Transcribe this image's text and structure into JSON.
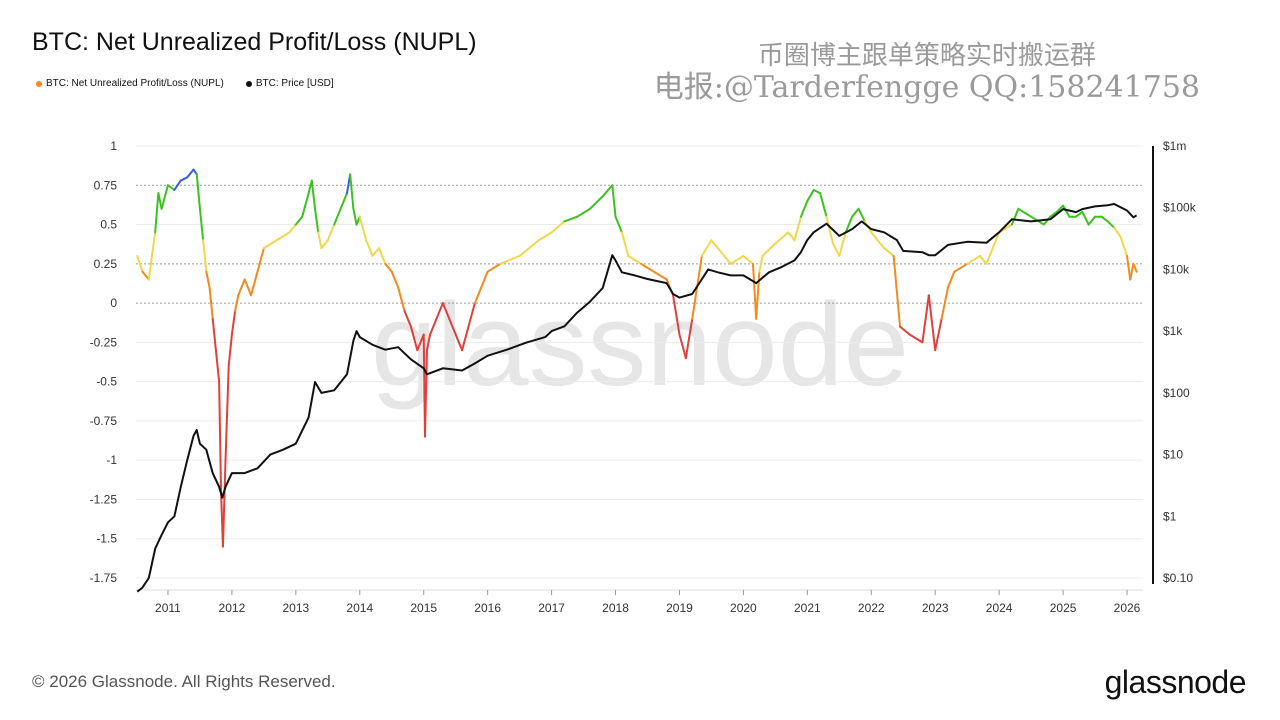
{
  "chart_data": {
    "type": "line",
    "title": "BTC: Net Unrealized Profit/Loss (NUPL)",
    "legend": [
      {
        "name": "BTC: Net Unrealized Profit/Loss (NUPL)",
        "color": "#f28a1c"
      },
      {
        "name": "BTC: Price [USD]",
        "color": "#111111"
      }
    ],
    "x_ticks": [
      "2011",
      "2012",
      "2013",
      "2014",
      "2015",
      "2016",
      "2017",
      "2018",
      "2019",
      "2020",
      "2021",
      "2022",
      "2023",
      "2024",
      "2025",
      "2026"
    ],
    "xlim": [
      2010.5,
      2026.25
    ],
    "left_axis": {
      "ticks": [
        "1",
        "0.75",
        "0.5",
        "0.25",
        "0",
        "-0.25",
        "-0.5",
        "-0.75",
        "-1",
        "-1.25",
        "-1.5",
        "-1.75"
      ],
      "ylim": [
        -1.75,
        1
      ]
    },
    "right_axis": {
      "ticks": [
        "$1m",
        "$100k",
        "$10k",
        "$1k",
        "$100",
        "$10",
        "$1",
        "$0.10"
      ],
      "scale": "log",
      "ylim_log10": [
        -1,
        6
      ]
    },
    "nupl_series": {
      "name": "BTC: Net Unrealized Profit/Loss (NUPL)",
      "x": [
        2010.52,
        2010.6,
        2010.7,
        2010.8,
        2010.85,
        2010.9,
        2011.0,
        2011.1,
        2011.2,
        2011.3,
        2011.4,
        2011.45,
        2011.5,
        2011.55,
        2011.6,
        2011.65,
        2011.7,
        2011.75,
        2011.8,
        2011.83,
        2011.86,
        2011.9,
        2011.95,
        2012.0,
        2012.05,
        2012.1,
        2012.2,
        2012.3,
        2012.5,
        2012.7,
        2012.9,
        2013.0,
        2013.1,
        2013.2,
        2013.25,
        2013.3,
        2013.35,
        2013.4,
        2013.5,
        2013.6,
        2013.7,
        2013.8,
        2013.85,
        2013.9,
        2013.95,
        2014.0,
        2014.1,
        2014.2,
        2014.3,
        2014.4,
        2014.5,
        2014.6,
        2014.7,
        2014.8,
        2014.9,
        2015.0,
        2015.02,
        2015.05,
        2015.1,
        2015.2,
        2015.3,
        2015.5,
        2015.6,
        2015.7,
        2015.8,
        2015.9,
        2016.0,
        2016.2,
        2016.5,
        2016.8,
        2017.0,
        2017.2,
        2017.4,
        2017.6,
        2017.8,
        2017.95,
        2018.0,
        2018.1,
        2018.2,
        2018.4,
        2018.6,
        2018.8,
        2018.9,
        2019.0,
        2019.1,
        2019.2,
        2019.35,
        2019.5,
        2019.6,
        2019.8,
        2020.0,
        2020.15,
        2020.2,
        2020.25,
        2020.3,
        2020.5,
        2020.7,
        2020.8,
        2020.9,
        2021.0,
        2021.1,
        2021.2,
        2021.3,
        2021.4,
        2021.5,
        2021.6,
        2021.7,
        2021.8,
        2021.9,
        2022.0,
        2022.2,
        2022.35,
        2022.45,
        2022.6,
        2022.8,
        2022.9,
        2023.0,
        2023.1,
        2023.2,
        2023.3,
        2023.5,
        2023.7,
        2023.8,
        2023.9,
        2024.0,
        2024.2,
        2024.3,
        2024.5,
        2024.7,
        2024.8,
        2024.9,
        2025.0,
        2025.1,
        2025.2,
        2025.3,
        2025.4,
        2025.5,
        2025.6,
        2025.7,
        2025.8,
        2025.9,
        2026.0,
        2026.05,
        2026.1,
        2026.15
      ],
      "y": [
        0.3,
        0.2,
        0.15,
        0.45,
        0.7,
        0.6,
        0.75,
        0.72,
        0.78,
        0.8,
        0.85,
        0.82,
        0.6,
        0.4,
        0.2,
        0.1,
        -0.1,
        -0.3,
        -0.5,
        -1.2,
        -1.55,
        -1.0,
        -0.4,
        -0.2,
        -0.05,
        0.05,
        0.15,
        0.05,
        0.35,
        0.4,
        0.45,
        0.5,
        0.55,
        0.7,
        0.78,
        0.6,
        0.45,
        0.35,
        0.4,
        0.5,
        0.6,
        0.7,
        0.82,
        0.6,
        0.5,
        0.55,
        0.4,
        0.3,
        0.35,
        0.25,
        0.2,
        0.1,
        -0.05,
        -0.15,
        -0.3,
        -0.2,
        -0.85,
        -0.3,
        -0.2,
        -0.1,
        0.0,
        -0.2,
        -0.3,
        -0.15,
        0.0,
        0.1,
        0.2,
        0.25,
        0.3,
        0.4,
        0.45,
        0.52,
        0.55,
        0.6,
        0.68,
        0.75,
        0.55,
        0.45,
        0.3,
        0.25,
        0.2,
        0.15,
        0.05,
        -0.2,
        -0.35,
        -0.1,
        0.3,
        0.4,
        0.35,
        0.25,
        0.3,
        0.25,
        -0.1,
        0.2,
        0.3,
        0.38,
        0.45,
        0.4,
        0.55,
        0.65,
        0.72,
        0.7,
        0.55,
        0.38,
        0.3,
        0.45,
        0.55,
        0.6,
        0.52,
        0.45,
        0.35,
        0.3,
        -0.15,
        -0.2,
        -0.25,
        0.05,
        -0.3,
        -0.1,
        0.1,
        0.2,
        0.25,
        0.3,
        0.25,
        0.35,
        0.45,
        0.5,
        0.6,
        0.55,
        0.5,
        0.55,
        0.58,
        0.62,
        0.55,
        0.55,
        0.58,
        0.5,
        0.55,
        0.55,
        0.52,
        0.48,
        0.42,
        0.3,
        0.15,
        0.25,
        0.2
      ]
    },
    "price_series": {
      "name": "BTC: Price [USD]",
      "x": [
        2010.52,
        2010.6,
        2010.7,
        2010.8,
        2010.9,
        2011.0,
        2011.1,
        2011.2,
        2011.3,
        2011.4,
        2011.45,
        2011.5,
        2011.6,
        2011.7,
        2011.8,
        2011.85,
        2011.9,
        2012.0,
        2012.2,
        2012.4,
        2012.6,
        2012.8,
        2013.0,
        2013.2,
        2013.3,
        2013.4,
        2013.6,
        2013.8,
        2013.9,
        2013.95,
        2014.0,
        2014.2,
        2014.4,
        2014.6,
        2014.8,
        2015.0,
        2015.05,
        2015.3,
        2015.6,
        2015.8,
        2016.0,
        2016.3,
        2016.6,
        2016.9,
        2017.0,
        2017.2,
        2017.4,
        2017.6,
        2017.8,
        2017.95,
        2018.0,
        2018.1,
        2018.3,
        2018.5,
        2018.8,
        2018.9,
        2019.0,
        2019.2,
        2019.45,
        2019.6,
        2019.8,
        2020.0,
        2020.2,
        2020.4,
        2020.6,
        2020.8,
        2020.9,
        2021.0,
        2021.1,
        2021.3,
        2021.5,
        2021.7,
        2021.85,
        2022.0,
        2022.2,
        2022.4,
        2022.5,
        2022.8,
        2022.9,
        2023.0,
        2023.2,
        2023.5,
        2023.8,
        2024.0,
        2024.2,
        2024.5,
        2024.8,
        2025.0,
        2025.2,
        2025.3,
        2025.5,
        2025.7,
        2025.8,
        2026.0,
        2026.1,
        2026.15
      ],
      "y": [
        0.06,
        0.07,
        0.1,
        0.3,
        0.5,
        0.8,
        1,
        3,
        8,
        20,
        25,
        15,
        12,
        5,
        3,
        2,
        3,
        5,
        5,
        6,
        10,
        12,
        15,
        40,
        150,
        100,
        110,
        200,
        700,
        1000,
        800,
        600,
        500,
        550,
        350,
        250,
        200,
        250,
        230,
        300,
        400,
        500,
        650,
        800,
        1000,
        1200,
        2000,
        3000,
        5000,
        17000,
        14000,
        9000,
        8000,
        7000,
        6000,
        4000,
        3500,
        4000,
        10000,
        9000,
        8000,
        8000,
        6000,
        9000,
        11000,
        14000,
        19000,
        30000,
        40000,
        55000,
        35000,
        45000,
        60000,
        45000,
        40000,
        30000,
        20000,
        19000,
        17000,
        17000,
        25000,
        28000,
        27000,
        40000,
        65000,
        60000,
        65000,
        95000,
        85000,
        95000,
        105000,
        110000,
        115000,
        90000,
        70000,
        75000
      ]
    }
  },
  "watermark": {
    "line1": "币圈博主跟单策略实时搬运群",
    "line2": "电报:@Tarderfengge QQ:158241758"
  },
  "background_logo": "glassnode",
  "footer": {
    "copyright": "© 2026 Glassnode. All Rights Reserved.",
    "brand": "glassnode"
  }
}
